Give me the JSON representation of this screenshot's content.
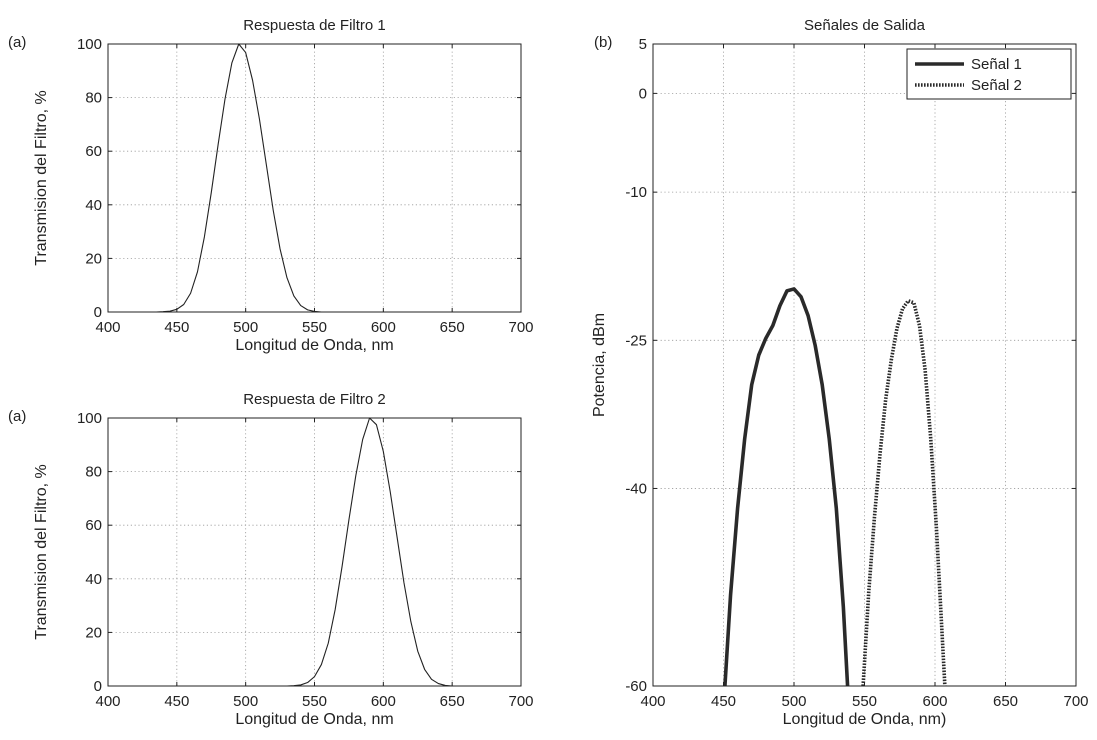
{
  "chart_data": [
    {
      "type": "line",
      "panel_label": "(a)",
      "title": "Respuesta de Filtro 1",
      "xlabel": "Longitud de Onda, nm",
      "ylabel": "Transmision del Filtro, %",
      "xlim": [
        400,
        700
      ],
      "ylim": [
        0,
        100
      ],
      "xticks": [
        400,
        450,
        500,
        550,
        600,
        650,
        700
      ],
      "yticks": [
        0,
        20,
        40,
        60,
        80,
        100
      ],
      "grid": true,
      "series": [
        {
          "color": "#222222",
          "x": [
            435,
            440,
            445,
            450,
            455,
            460,
            465,
            470,
            475,
            480,
            485,
            490,
            495,
            500,
            505,
            510,
            515,
            520,
            525,
            530,
            535,
            540,
            545,
            550,
            555
          ],
          "y": [
            0.0,
            0.1,
            0.3,
            1.0,
            2.8,
            7.0,
            15.0,
            28.0,
            44.5,
            62.5,
            79.5,
            93.0,
            100.0,
            96.8,
            86.5,
            72.0,
            55.0,
            38.0,
            23.5,
            12.8,
            6.0,
            2.4,
            0.8,
            0.2,
            0.0
          ]
        }
      ]
    },
    {
      "type": "line",
      "panel_label": "(a)",
      "title": "Respuesta de Filtro 2",
      "xlabel": "Longitud de Onda, nm",
      "ylabel": "Transmision del Filtro, %",
      "xlim": [
        400,
        700
      ],
      "ylim": [
        0,
        100
      ],
      "xticks": [
        400,
        450,
        500,
        550,
        600,
        650,
        700
      ],
      "yticks": [
        0,
        20,
        40,
        60,
        80,
        100
      ],
      "grid": true,
      "series": [
        {
          "color": "#222222",
          "x": [
            530,
            535,
            540,
            545,
            550,
            555,
            560,
            565,
            570,
            575,
            580,
            585,
            590,
            595,
            600,
            605,
            610,
            615,
            620,
            625,
            630,
            635,
            640,
            645,
            650
          ],
          "y": [
            0.0,
            0.1,
            0.4,
            1.3,
            3.5,
            8.0,
            16.0,
            28.5,
            44.5,
            62.0,
            78.5,
            92.0,
            100.0,
            97.5,
            87.5,
            72.5,
            55.5,
            38.5,
            24.0,
            13.0,
            6.2,
            2.5,
            0.9,
            0.2,
            0.0
          ]
        }
      ]
    },
    {
      "type": "line",
      "panel_label": "(b)",
      "title": "Señales de Salida",
      "xlabel": "Longitud de Onda, nm)",
      "ylabel": "Potencia, dBm",
      "xlim": [
        400,
        700
      ],
      "ylim": [
        -60,
        5
      ],
      "xticks": [
        400,
        450,
        500,
        550,
        600,
        650,
        700
      ],
      "yticks": [
        5,
        0,
        -10,
        -25,
        -40,
        -60
      ],
      "grid": true,
      "legend": "top-right",
      "series": [
        {
          "name": "Señal 1",
          "style": "solid",
          "color": "#2a2a2a",
          "x": [
            451,
            455,
            460,
            465,
            470,
            475,
            480,
            485,
            490,
            495,
            500,
            505,
            510,
            515,
            520,
            525,
            530,
            535,
            538
          ],
          "y": [
            -60,
            -50.8,
            -42.0,
            -35.0,
            -29.5,
            -26.5,
            -24.8,
            -23.5,
            -21.5,
            -20.0,
            -19.8,
            -20.6,
            -22.5,
            -25.5,
            -29.5,
            -35.0,
            -42.0,
            -52.0,
            -60
          ]
        },
        {
          "name": "Señal 2",
          "style": "dotted",
          "color": "#2a2a2a",
          "x": [
            549,
            553,
            557,
            561,
            565,
            569,
            573,
            577,
            581,
            585,
            589,
            593,
            597,
            601,
            604,
            607
          ],
          "y": [
            -60,
            -50.5,
            -43.0,
            -36.5,
            -31.0,
            -27.0,
            -23.8,
            -21.8,
            -21.0,
            -21.2,
            -23.5,
            -28.0,
            -35.0,
            -44.0,
            -52.0,
            -60
          ]
        }
      ]
    }
  ]
}
